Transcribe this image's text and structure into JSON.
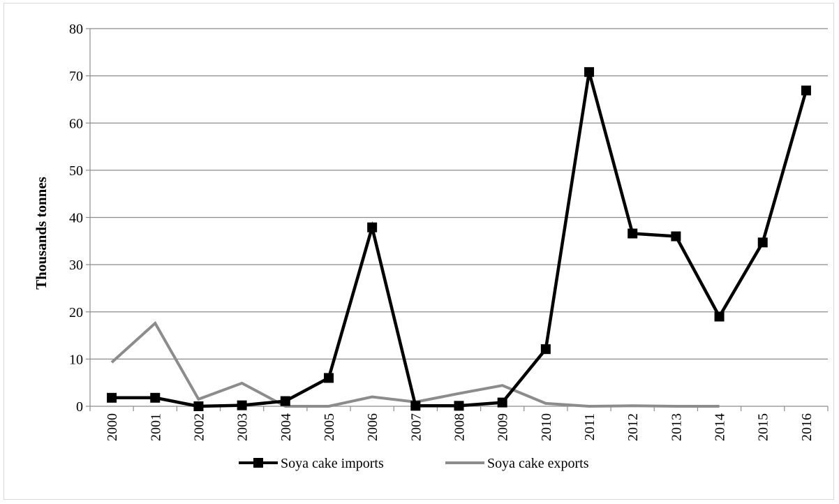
{
  "chart_data": {
    "type": "line",
    "title": "",
    "xlabel": "",
    "ylabel": "Thousands tonnes",
    "ylim": [
      0,
      80
    ],
    "yticks": [
      0,
      10,
      20,
      30,
      40,
      50,
      60,
      70,
      80
    ],
    "grid": "horizontal",
    "legend": "bottom",
    "categories": [
      "2000",
      "2001",
      "2002",
      "2003",
      "2004",
      "2005",
      "2006",
      "2007",
      "2008",
      "2009",
      "2010",
      "2011",
      "2012",
      "2013",
      "2014",
      "2015",
      "2016"
    ],
    "series": [
      {
        "name": "Soya cake imports",
        "color": "#000000",
        "marker": "square",
        "values": [
          1.8,
          1.8,
          0.0,
          0.2,
          1.1,
          6.0,
          37.9,
          0.1,
          0.1,
          0.8,
          12.1,
          70.8,
          36.6,
          36.0,
          19.0,
          34.7,
          66.9
        ]
      },
      {
        "name": "Soya cake exports",
        "color": "#8c8c8c",
        "marker": "none",
        "values": [
          9.3,
          17.6,
          1.5,
          4.9,
          0.0,
          0.0,
          2.0,
          0.9,
          2.7,
          4.4,
          0.6,
          0.0,
          0.1,
          0.0,
          0.0,
          null,
          null
        ]
      }
    ]
  }
}
